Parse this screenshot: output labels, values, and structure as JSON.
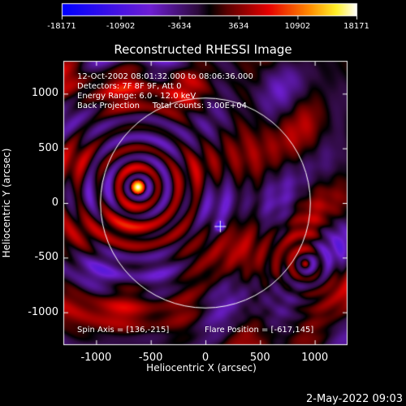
{
  "chart_data": {
    "type": "heatmap",
    "title": "Reconstructed RHESSI Image",
    "xlabel": "Heliocentric X (arcsec)",
    "ylabel": "Heliocentric Y (arcsec)",
    "xlim": [
      -1300,
      1300
    ],
    "ylim": [
      -1300,
      1300
    ],
    "x_ticks": [
      "-1000",
      "-500",
      "0",
      "500",
      "1000"
    ],
    "y_ticks": [
      "1000",
      "500",
      "0",
      "-500",
      "-1000"
    ],
    "colorbar": {
      "min": -18171,
      "max": 18171,
      "tick_values": [
        -18171,
        -10902,
        -3634,
        3634,
        10902,
        18171
      ],
      "tick_labels": [
        "-18171",
        "-10902",
        "-3634",
        "3634",
        "10902",
        "18171"
      ]
    },
    "info_lines": [
      "12-Oct-2002 08:01:32.000 to 08:06:36.000",
      "Detectors: 7F 8F 9F, Att 0",
      "Energy Range: 6.0 - 12.0 keV",
      "Back Projection     Total counts: 3.00E+04"
    ],
    "spin_axis_text": "Spin Axis = [136,-215]",
    "flare_position_text": "Flare Position = [-617,145]",
    "spin_axis": [
      136,
      -215
    ],
    "flare_position": [
      -617,
      145
    ],
    "solar_disk_radius_arcsec": 960,
    "grid": false
  },
  "timestamp": "2-May-2022 09:03"
}
